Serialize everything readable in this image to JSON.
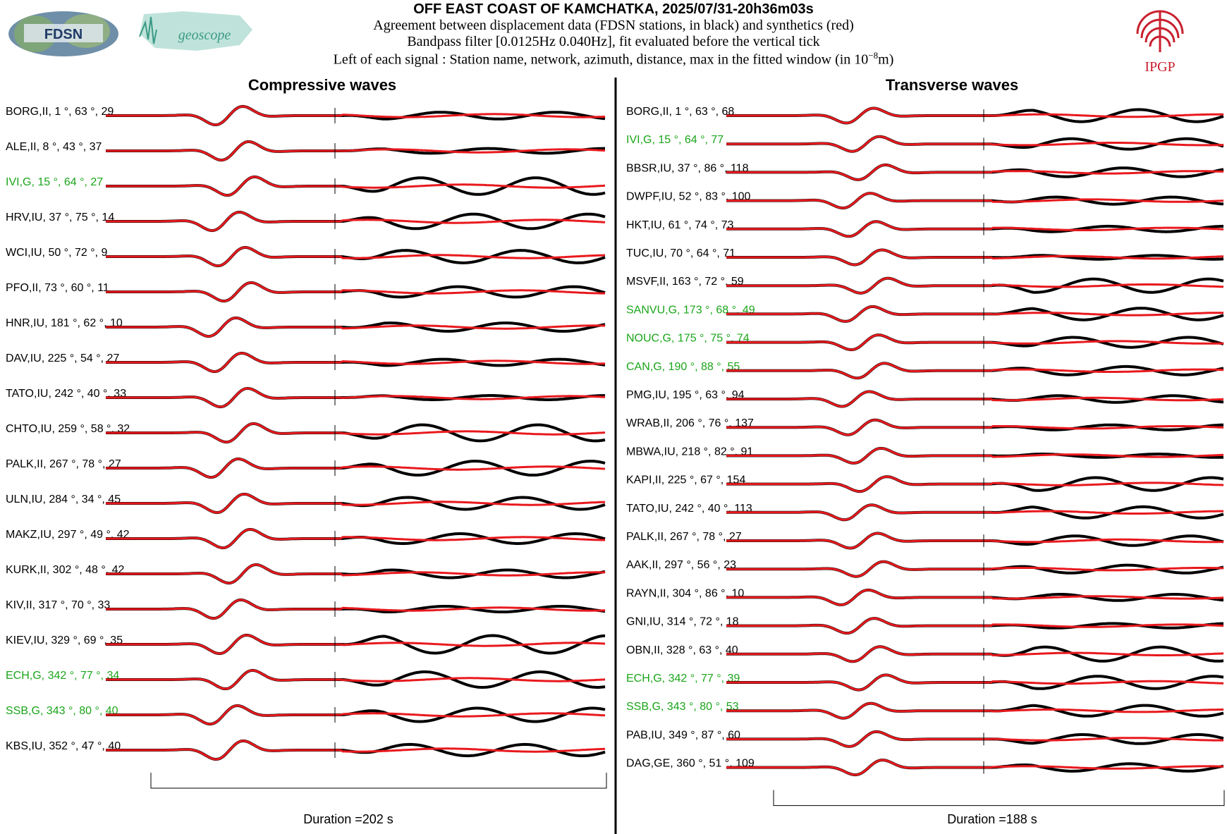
{
  "header": {
    "title": "OFF EAST COAST OF KAMCHATKA, 2025/07/31-20h36m03s",
    "line1": "Agreement between displacement data (FDSN stations, in black) and synthetics (red)",
    "line2": "Bandpass filter [0.0125Hz 0.040Hz], fit evaluated before the vertical tick",
    "line3_prefix": "Left of each signal : Station name, network, azimuth, distance, max in the fitted window (in 10",
    "line3_exp": "−8",
    "line3_suffix": "m)",
    "logos": {
      "left1": "FDSN",
      "left2": "geoscope",
      "right": "IPGP"
    }
  },
  "colors": {
    "observed": "#000000",
    "synthetic": "#e8191d",
    "geoscope_station": "#1aa51a",
    "ipgp": "#c8202e"
  },
  "chart_data": [
    {
      "type": "line",
      "title": "Compressive waves",
      "duration_label": "Duration =202 s",
      "series_names": [
        "displacement data",
        "synthetics"
      ],
      "stations": [
        {
          "label": "BORG,II, 1 °, 63 °, 29",
          "geoscope": false
        },
        {
          "label": "ALE,II, 8 °, 43 °, 37",
          "geoscope": false
        },
        {
          "label": "IVI,G, 15 °, 64 °, 27",
          "geoscope": true
        },
        {
          "label": "HRV,IU, 37 °, 75 °, 14",
          "geoscope": false
        },
        {
          "label": "WCI,IU, 50 °, 72 °, 9",
          "geoscope": false
        },
        {
          "label": "PFO,II, 73 °, 60 °, 11",
          "geoscope": false
        },
        {
          "label": "HNR,IU, 181 °, 62 °, 10",
          "geoscope": false
        },
        {
          "label": "DAV,IU, 225 °, 54 °, 27",
          "geoscope": false
        },
        {
          "label": "TATO,IU, 242 °, 40 °, 33",
          "geoscope": false
        },
        {
          "label": "CHTO,IU, 259 °, 58 °, 32",
          "geoscope": false
        },
        {
          "label": "PALK,II, 267 °, 78 °, 27",
          "geoscope": false
        },
        {
          "label": "ULN,IU, 284 °, 34 °, 45",
          "geoscope": false
        },
        {
          "label": "MAKZ,IU, 297 °, 49 °, 42",
          "geoscope": false
        },
        {
          "label": "KURK,II, 302 °, 48 °, 42",
          "geoscope": false
        },
        {
          "label": "KIV,II, 317 °, 70 °, 33",
          "geoscope": false
        },
        {
          "label": "KIEV,IU, 329 °, 69 °, 35",
          "geoscope": false
        },
        {
          "label": "ECH,G, 342 °, 77 °, 34",
          "geoscope": true
        },
        {
          "label": "SSB,G, 343 °, 80 °, 40",
          "geoscope": true
        },
        {
          "label": "KBS,IU, 352 °, 47 °, 40",
          "geoscope": false
        }
      ]
    },
    {
      "type": "line",
      "title": "Transverse waves",
      "duration_label": "Duration =188 s",
      "series_names": [
        "displacement data",
        "synthetics"
      ],
      "stations": [
        {
          "label": "BORG,II, 1 °, 63 °, 68",
          "geoscope": false
        },
        {
          "label": "IVI,G, 15 °, 64 °, 77",
          "geoscope": true
        },
        {
          "label": "BBSR,IU, 37 °, 86 °, 118",
          "geoscope": false
        },
        {
          "label": "DWPF,IU, 52 °, 83 °, 100",
          "geoscope": false
        },
        {
          "label": "HKT,IU, 61 °, 74 °, 73",
          "geoscope": false
        },
        {
          "label": "TUC,IU, 70 °, 64 °, 71",
          "geoscope": false
        },
        {
          "label": "MSVF,II, 163 °, 72 °, 59",
          "geoscope": false
        },
        {
          "label": "SANVU,G, 173 °, 68 °, 49",
          "geoscope": true
        },
        {
          "label": "NOUC,G, 175 °, 75 °, 74",
          "geoscope": true
        },
        {
          "label": "CAN,G, 190 °, 88 °, 55",
          "geoscope": true
        },
        {
          "label": "PMG,IU, 195 °, 63 °, 94",
          "geoscope": false
        },
        {
          "label": "WRAB,II, 206 °, 76 °, 137",
          "geoscope": false
        },
        {
          "label": "MBWA,IU, 218 °, 82 °, 91",
          "geoscope": false
        },
        {
          "label": "KAPI,II, 225 °, 67 °, 154",
          "geoscope": false
        },
        {
          "label": "TATO,IU, 242 °, 40 °, 113",
          "geoscope": false
        },
        {
          "label": "PALK,II, 267 °, 78 °, 27",
          "geoscope": false
        },
        {
          "label": "AAK,II, 297 °, 56 °, 23",
          "geoscope": false
        },
        {
          "label": "RAYN,II, 304 °, 86 °, 10",
          "geoscope": false
        },
        {
          "label": "GNI,IU, 314 °, 72 °, 18",
          "geoscope": false
        },
        {
          "label": "OBN,II, 328 °, 63 °, 40",
          "geoscope": false
        },
        {
          "label": "ECH,G, 342 °, 77 °, 39",
          "geoscope": true
        },
        {
          "label": "SSB,G, 343 °, 80 °, 53",
          "geoscope": true
        },
        {
          "label": "PAB,IU, 349 °, 87 °, 60",
          "geoscope": false
        },
        {
          "label": "DAG,GE, 360 °, 51 °, 109",
          "geoscope": false
        }
      ]
    }
  ]
}
